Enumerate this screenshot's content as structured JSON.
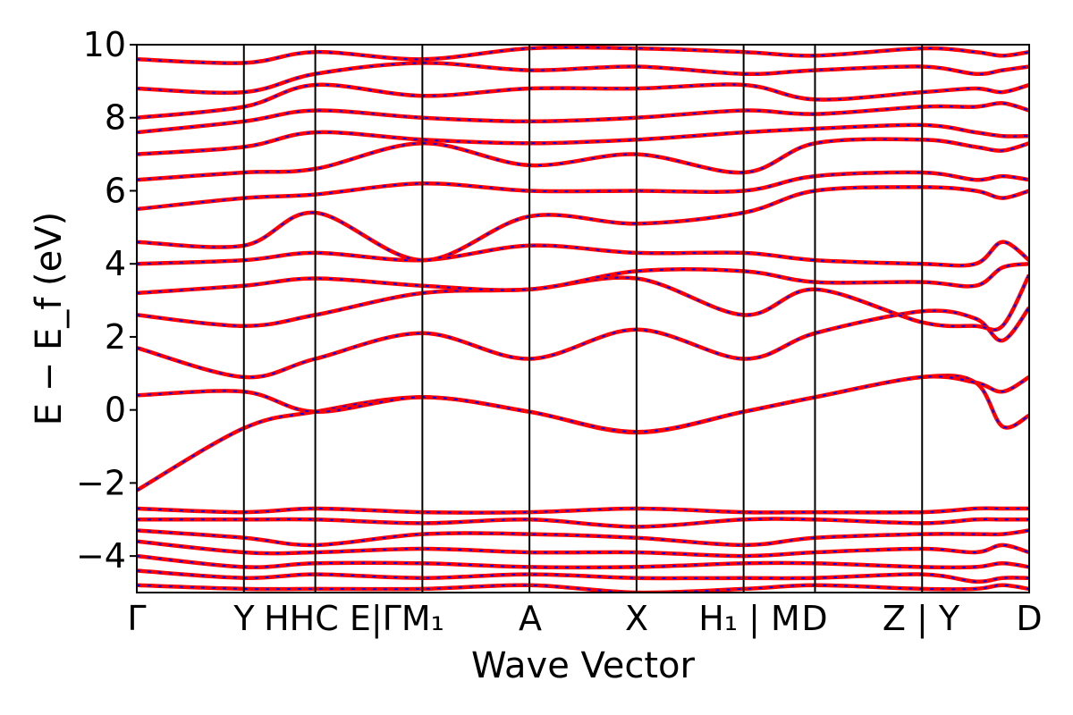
{
  "chart_data": {
    "type": "line",
    "title": "",
    "xlabel": "Wave Vector",
    "ylabel": "E − E_f (eV)",
    "ylim": [
      -5,
      10
    ],
    "yticks": [
      -4,
      -2,
      0,
      2,
      4,
      6,
      8,
      10
    ],
    "ytick_labels": [
      "−4",
      "−2",
      "0",
      "2",
      "4",
      "6",
      "8",
      "10"
    ],
    "xlim": [
      0,
      1
    ],
    "kpoints": [
      {
        "label": "Γ",
        "x": 0.0
      },
      {
        "label": "Y",
        "x": 0.12
      },
      {
        "label": "H",
        "x": 0.2
      },
      {
        "label": "C",
        "x": 0.2
      },
      {
        "label": "E",
        "x": 0.32
      },
      {
        "label": "M₁",
        "x": 0.32
      },
      {
        "label": "A",
        "x": 0.44
      },
      {
        "label": "X",
        "x": 0.56
      },
      {
        "label": "H₁ | M",
        "x": 0.68
      },
      {
        "label": "D",
        "x": 0.76
      },
      {
        "label": "Z | Y",
        "x": 0.88
      },
      {
        "label": "D",
        "x": 1.0
      }
    ],
    "xtick_text": [
      "Γ",
      "Y",
      "HHC E|ΓM₁",
      "A",
      "X",
      "H₁ | M",
      "D",
      "Z | Y",
      "D"
    ],
    "grid": false,
    "series_colors": {
      "band": "#ff0000",
      "dash": "#0000ff"
    },
    "representative_bands": [
      [
        -2.2,
        -0.5,
        -0.05,
        0.35,
        -0.05,
        -0.62,
        -0.05,
        0.35,
        0.9,
        0.75,
        -0.45,
        -0.15
      ],
      [
        0.4,
        0.5,
        -0.05,
        0.35,
        -0.05,
        -0.6,
        -0.05,
        0.35,
        0.9,
        0.75,
        0.5,
        0.9
      ],
      [
        1.7,
        0.9,
        1.4,
        2.1,
        1.4,
        2.2,
        1.4,
        2.1,
        2.7,
        2.5,
        1.9,
        2.8
      ],
      [
        2.6,
        2.3,
        2.6,
        3.2,
        3.3,
        3.6,
        2.6,
        3.3,
        2.4,
        2.3,
        2.3,
        3.7
      ],
      [
        3.2,
        3.4,
        3.6,
        3.4,
        3.3,
        3.8,
        3.8,
        3.5,
        3.5,
        3.4,
        3.9,
        4.0
      ],
      [
        4.0,
        4.1,
        4.3,
        4.1,
        4.5,
        4.3,
        4.3,
        4.1,
        4.0,
        4.0,
        4.6,
        4.1
      ],
      [
        4.6,
        4.5,
        5.4,
        4.1,
        5.3,
        5.1,
        5.4,
        6.0,
        6.1,
        6.0,
        5.8,
        6.0
      ],
      [
        5.5,
        5.8,
        5.9,
        6.2,
        6.0,
        6.0,
        6.0,
        6.4,
        6.5,
        6.3,
        6.4,
        6.3
      ],
      [
        6.3,
        6.5,
        6.6,
        7.3,
        6.7,
        7.0,
        6.5,
        7.3,
        7.4,
        7.2,
        7.1,
        7.3
      ],
      [
        7.0,
        7.2,
        7.6,
        7.4,
        7.3,
        7.4,
        7.6,
        7.7,
        7.8,
        7.6,
        7.5,
        7.5
      ],
      [
        7.6,
        7.9,
        8.2,
        8.0,
        7.9,
        8.0,
        8.2,
        8.1,
        8.3,
        8.3,
        8.4,
        8.2
      ],
      [
        8.0,
        8.3,
        8.9,
        8.6,
        8.8,
        8.8,
        8.9,
        8.5,
        8.7,
        8.8,
        8.7,
        8.9
      ],
      [
        8.8,
        8.7,
        9.2,
        9.5,
        9.3,
        9.4,
        9.2,
        9.3,
        9.4,
        9.2,
        9.3,
        9.4
      ],
      [
        9.6,
        9.5,
        9.8,
        9.6,
        9.9,
        9.9,
        9.8,
        9.7,
        9.9,
        9.8,
        9.7,
        9.8
      ],
      [
        -2.7,
        -2.8,
        -2.7,
        -2.8,
        -2.8,
        -2.7,
        -2.8,
        -2.8,
        -2.8,
        -2.7,
        -2.7,
        -2.7
      ],
      [
        -3.0,
        -3.0,
        -3.0,
        -3.1,
        -3.0,
        -3.2,
        -3.0,
        -3.0,
        -3.1,
        -3.0,
        -3.0,
        -3.0
      ],
      [
        -3.3,
        -3.5,
        -3.7,
        -3.4,
        -3.4,
        -3.5,
        -3.7,
        -3.5,
        -3.4,
        -3.4,
        -3.4,
        -3.3
      ],
      [
        -3.6,
        -3.9,
        -3.9,
        -3.8,
        -3.9,
        -3.9,
        -4.0,
        -3.9,
        -3.8,
        -3.9,
        -3.7,
        -3.9
      ],
      [
        -4.0,
        -4.3,
        -4.2,
        -4.2,
        -4.3,
        -4.3,
        -4.2,
        -4.2,
        -4.3,
        -4.3,
        -4.2,
        -4.3
      ],
      [
        -4.4,
        -4.6,
        -4.5,
        -4.6,
        -4.5,
        -4.6,
        -4.6,
        -4.6,
        -4.5,
        -4.7,
        -4.6,
        -4.6
      ],
      [
        -4.8,
        -4.9,
        -4.9,
        -4.9,
        -4.8,
        -5.0,
        -4.9,
        -4.8,
        -4.9,
        -4.9,
        -4.8,
        -4.9
      ]
    ]
  }
}
